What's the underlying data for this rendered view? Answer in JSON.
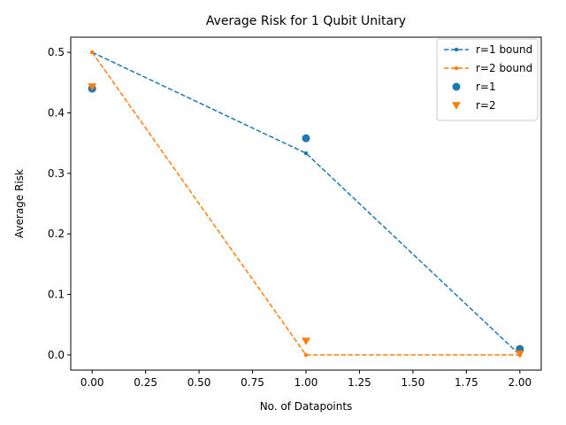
{
  "chart_data": {
    "type": "line",
    "title": "Average Risk for 1 Qubit Unitary",
    "xlabel": "No. of Datapoints",
    "ylabel": "Average Risk",
    "xlim": [
      -0.1,
      2.1
    ],
    "ylim": [
      -0.025,
      0.525
    ],
    "xticks": [
      0.0,
      0.25,
      0.5,
      0.75,
      1.0,
      1.25,
      1.5,
      1.75,
      2.0
    ],
    "xtick_labels": [
      "0.00",
      "0.25",
      "0.50",
      "0.75",
      "1.00",
      "1.25",
      "1.50",
      "1.75",
      "2.00"
    ],
    "yticks": [
      0.0,
      0.1,
      0.2,
      0.3,
      0.4,
      0.5
    ],
    "ytick_labels": [
      "0.0",
      "0.1",
      "0.2",
      "0.3",
      "0.4",
      "0.5"
    ],
    "grid": false,
    "legend_position": "top-right",
    "series": [
      {
        "name": "r=1 bound",
        "kind": "dashed-line-with-dot-markers",
        "color": "#1f77b4",
        "x": [
          0,
          1,
          2
        ],
        "y": [
          0.5,
          0.3333,
          0.0
        ]
      },
      {
        "name": "r=2 bound",
        "kind": "dashed-line-with-dot-markers",
        "color": "#ff7f0e",
        "x": [
          0,
          1,
          2
        ],
        "y": [
          0.5,
          0.0,
          0.0
        ]
      },
      {
        "name": "r=1",
        "kind": "scatter-circle",
        "color": "#1f77b4",
        "x": [
          0,
          1,
          2
        ],
        "y": [
          0.44,
          0.358,
          0.01
        ]
      },
      {
        "name": "r=2",
        "kind": "scatter-triangle-down",
        "color": "#ff7f0e",
        "x": [
          0,
          1,
          2
        ],
        "y": [
          0.443,
          0.023,
          0.002
        ]
      }
    ]
  }
}
